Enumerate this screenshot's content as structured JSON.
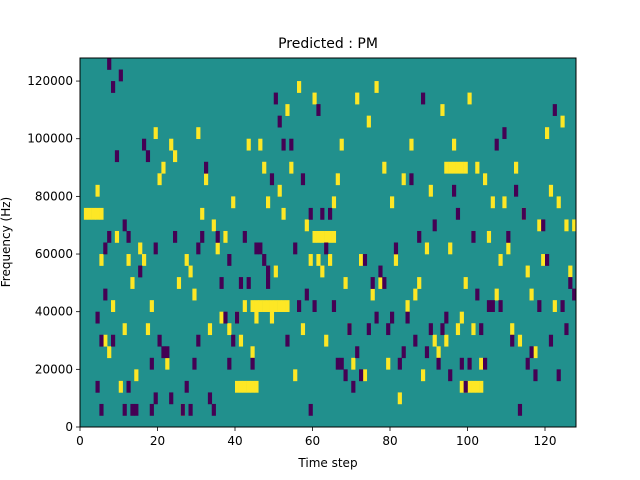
{
  "chart_data": {
    "type": "heatmap",
    "title": "Predicted : PM",
    "xlabel": "Time step",
    "ylabel": "Frequency (Hz)",
    "xlim": [
      0,
      128
    ],
    "ylim": [
      0,
      128000
    ],
    "x_ticks": [
      "0",
      "20",
      "40",
      "60",
      "80",
      "100",
      "120"
    ],
    "y_ticks": [
      "0",
      "20000",
      "40000",
      "60000",
      "80000",
      "100000",
      "120000"
    ],
    "grid": false,
    "colormap": {
      "background": "#21908d",
      "low": "#440154",
      "high": "#fde725"
    },
    "cells": {
      "low": [
        [
          4,
          9
        ],
        [
          4,
          3
        ],
        [
          5,
          1
        ],
        [
          5,
          7
        ],
        [
          6,
          15
        ],
        [
          6,
          11
        ],
        [
          7,
          31
        ],
        [
          7,
          16
        ],
        [
          8,
          7
        ],
        [
          8,
          29
        ],
        [
          9,
          23
        ],
        [
          10,
          30
        ],
        [
          11,
          1
        ],
        [
          11,
          17
        ],
        [
          12,
          16
        ],
        [
          12,
          3
        ],
        [
          13,
          1
        ],
        [
          14,
          1
        ],
        [
          15,
          13
        ],
        [
          16,
          24
        ],
        [
          17,
          23
        ],
        [
          18,
          1
        ],
        [
          18,
          5
        ],
        [
          19,
          15
        ],
        [
          19,
          2
        ],
        [
          20,
          7
        ],
        [
          21,
          6
        ],
        [
          22,
          6
        ],
        [
          23,
          2
        ],
        [
          24,
          16
        ],
        [
          26,
          1
        ],
        [
          27,
          3
        ],
        [
          28,
          1
        ],
        [
          29,
          5
        ],
        [
          30,
          15
        ],
        [
          30,
          7
        ],
        [
          31,
          16
        ],
        [
          32,
          22
        ],
        [
          33,
          2
        ],
        [
          34,
          1
        ],
        [
          35,
          16
        ],
        [
          36,
          12
        ],
        [
          37,
          9
        ],
        [
          38,
          14
        ],
        [
          38,
          5
        ],
        [
          39,
          7
        ],
        [
          40,
          9
        ],
        [
          41,
          12
        ],
        [
          42,
          16
        ],
        [
          43,
          12
        ],
        [
          44,
          5
        ],
        [
          45,
          15
        ],
        [
          46,
          15
        ],
        [
          47,
          14
        ],
        [
          48,
          12
        ],
        [
          48,
          13
        ],
        [
          49,
          21
        ],
        [
          50,
          28
        ],
        [
          51,
          26
        ],
        [
          52,
          24
        ],
        [
          53,
          7
        ],
        [
          54,
          24
        ],
        [
          55,
          15
        ],
        [
          56,
          10
        ],
        [
          57,
          21
        ],
        [
          58,
          11
        ],
        [
          59,
          1
        ],
        [
          59,
          18
        ],
        [
          60,
          10
        ],
        [
          61,
          27
        ],
        [
          62,
          18
        ],
        [
          63,
          15
        ],
        [
          64,
          18
        ],
        [
          65,
          10
        ],
        [
          66,
          5
        ],
        [
          67,
          5
        ],
        [
          68,
          4
        ],
        [
          69,
          8
        ],
        [
          70,
          3
        ],
        [
          71,
          6
        ],
        [
          72,
          4
        ],
        [
          73,
          14
        ],
        [
          74,
          8
        ],
        [
          75,
          12
        ],
        [
          76,
          9
        ],
        [
          77,
          13
        ],
        [
          78,
          12
        ],
        [
          79,
          8
        ],
        [
          80,
          9
        ],
        [
          81,
          15
        ],
        [
          82,
          5
        ],
        [
          83,
          6
        ],
        [
          84,
          9
        ],
        [
          85,
          21
        ],
        [
          86,
          7
        ],
        [
          87,
          16
        ],
        [
          88,
          28
        ],
        [
          89,
          6
        ],
        [
          90,
          8
        ],
        [
          91,
          17
        ],
        [
          92,
          5
        ],
        [
          93,
          8
        ],
        [
          94,
          9
        ],
        [
          95,
          4
        ],
        [
          96,
          20
        ],
        [
          97,
          18
        ],
        [
          98,
          5
        ],
        [
          99,
          3
        ],
        [
          100,
          5
        ],
        [
          101,
          16
        ],
        [
          102,
          11
        ],
        [
          103,
          8
        ],
        [
          104,
          5
        ],
        [
          105,
          10
        ],
        [
          106,
          10
        ],
        [
          107,
          24
        ],
        [
          108,
          10
        ],
        [
          109,
          25
        ],
        [
          110,
          16
        ],
        [
          111,
          7
        ],
        [
          112,
          20
        ],
        [
          113,
          1
        ],
        [
          114,
          18
        ],
        [
          115,
          5
        ],
        [
          116,
          6
        ],
        [
          117,
          4
        ],
        [
          118,
          10
        ],
        [
          119,
          17
        ],
        [
          120,
          14
        ],
        [
          121,
          7
        ],
        [
          122,
          27
        ],
        [
          123,
          4
        ],
        [
          124,
          10
        ],
        [
          125,
          8
        ],
        [
          126,
          12
        ],
        [
          127,
          11
        ]
      ],
      "high": [
        [
          4,
          20
        ],
        [
          5,
          14
        ],
        [
          6,
          7
        ],
        [
          7,
          6
        ],
        [
          8,
          10
        ],
        [
          9,
          16
        ],
        [
          10,
          3
        ],
        [
          11,
          8
        ],
        [
          12,
          14
        ],
        [
          13,
          12
        ],
        [
          14,
          4
        ],
        [
          15,
          15
        ],
        [
          16,
          14
        ],
        [
          17,
          8
        ],
        [
          18,
          10
        ],
        [
          19,
          25
        ],
        [
          20,
          21
        ],
        [
          21,
          22
        ],
        [
          22,
          5
        ],
        [
          23,
          24
        ],
        [
          24,
          23
        ],
        [
          25,
          12
        ],
        [
          26,
          1
        ],
        [
          27,
          14
        ],
        [
          28,
          13
        ],
        [
          29,
          11
        ],
        [
          30,
          25
        ],
        [
          31,
          18
        ],
        [
          32,
          21
        ],
        [
          33,
          8
        ],
        [
          34,
          17
        ],
        [
          35,
          15
        ],
        [
          36,
          9
        ],
        [
          37,
          16
        ],
        [
          38,
          8
        ],
        [
          39,
          19
        ],
        [
          40,
          9
        ],
        [
          41,
          7
        ],
        [
          42,
          10
        ],
        [
          43,
          24
        ],
        [
          44,
          6
        ],
        [
          45,
          9
        ],
        [
          46,
          24
        ],
        [
          47,
          22
        ],
        [
          48,
          19
        ],
        [
          49,
          9
        ],
        [
          50,
          13
        ],
        [
          51,
          20
        ],
        [
          52,
          18
        ],
        [
          53,
          27
        ],
        [
          54,
          22
        ],
        [
          55,
          4
        ],
        [
          56,
          29
        ],
        [
          57,
          8
        ],
        [
          58,
          17
        ],
        [
          59,
          14
        ],
        [
          60,
          28
        ],
        [
          61,
          14
        ],
        [
          62,
          13
        ],
        [
          63,
          7
        ],
        [
          64,
          14
        ],
        [
          65,
          19
        ],
        [
          66,
          21
        ],
        [
          67,
          24
        ],
        [
          68,
          12
        ],
        [
          69,
          8
        ],
        [
          70,
          5
        ],
        [
          71,
          28
        ],
        [
          72,
          14
        ],
        [
          73,
          4
        ],
        [
          74,
          26
        ],
        [
          75,
          11
        ],
        [
          76,
          29
        ],
        [
          77,
          12
        ],
        [
          78,
          22
        ],
        [
          79,
          5
        ],
        [
          80,
          19
        ],
        [
          81,
          14
        ],
        [
          82,
          2
        ],
        [
          83,
          21
        ],
        [
          84,
          10
        ],
        [
          85,
          24
        ],
        [
          86,
          11
        ],
        [
          87,
          12
        ],
        [
          88,
          4
        ],
        [
          89,
          15
        ],
        [
          90,
          20
        ],
        [
          91,
          7
        ],
        [
          92,
          6
        ],
        [
          93,
          27
        ],
        [
          94,
          7
        ],
        [
          95,
          15
        ],
        [
          96,
          24
        ],
        [
          97,
          8
        ],
        [
          98,
          9
        ],
        [
          99,
          12
        ],
        [
          100,
          28
        ],
        [
          101,
          8
        ],
        [
          102,
          22
        ],
        [
          103,
          5
        ],
        [
          104,
          21
        ],
        [
          105,
          16
        ],
        [
          106,
          19
        ],
        [
          107,
          11
        ],
        [
          108,
          14
        ],
        [
          109,
          19
        ],
        [
          110,
          15
        ],
        [
          111,
          8
        ],
        [
          112,
          22
        ],
        [
          113,
          7
        ],
        [
          114,
          18
        ],
        [
          115,
          13
        ],
        [
          116,
          11
        ],
        [
          117,
          6
        ],
        [
          118,
          17
        ],
        [
          119,
          14
        ],
        [
          120,
          25
        ],
        [
          121,
          20
        ],
        [
          122,
          10
        ],
        [
          123,
          19
        ],
        [
          124,
          26
        ],
        [
          125,
          17
        ],
        [
          126,
          13
        ],
        [
          127,
          17
        ],
        [
          44,
          10
        ],
        [
          45,
          10
        ],
        [
          46,
          10
        ],
        [
          47,
          10
        ],
        [
          48,
          10
        ],
        [
          49,
          10
        ],
        [
          50,
          10
        ],
        [
          51,
          10
        ],
        [
          52,
          10
        ],
        [
          53,
          10
        ],
        [
          60,
          16
        ],
        [
          61,
          16
        ],
        [
          62,
          16
        ],
        [
          63,
          16
        ],
        [
          64,
          16
        ],
        [
          65,
          16
        ],
        [
          94,
          22
        ],
        [
          95,
          22
        ],
        [
          96,
          22
        ],
        [
          97,
          22
        ],
        [
          98,
          22
        ],
        [
          99,
          22
        ],
        [
          40,
          3
        ],
        [
          41,
          3
        ],
        [
          42,
          3
        ],
        [
          43,
          3
        ],
        [
          44,
          3
        ],
        [
          45,
          3
        ],
        [
          98,
          3
        ],
        [
          99,
          3
        ],
        [
          100,
          3
        ],
        [
          101,
          3
        ],
        [
          102,
          3
        ],
        [
          103,
          3
        ],
        [
          1,
          18
        ],
        [
          2,
          18
        ],
        [
          3,
          18
        ],
        [
          4,
          18
        ],
        [
          5,
          18
        ]
      ]
    }
  }
}
